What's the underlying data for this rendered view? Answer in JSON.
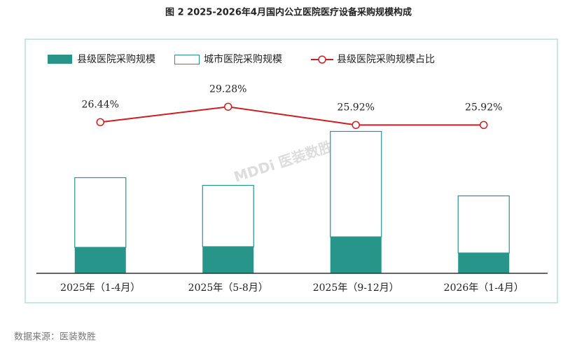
{
  "chart_data": {
    "type": "stacked_bar_line",
    "title": "图 2 2025-2026年4月国内公立医院医疗设备采购规模构成",
    "categories": [
      "2025年（1-4月）",
      "2025年（5-8月）",
      "2025年（9-12月）",
      "2026年（1-4月）"
    ],
    "series": [
      {
        "name": "县级医院采购规模",
        "color": "#27958a",
        "values": [
          37,
          38,
          52,
          29
        ]
      },
      {
        "name": "城市医院采购规模",
        "color": "#ffffff",
        "values": [
          100,
          88,
          151,
          82
        ]
      },
      {
        "name": "县级医院采购规模占比",
        "color": "#cc1f24",
        "axis": "y2",
        "values": [
          26.44,
          29.28,
          25.92,
          25.92
        ],
        "value_labels": [
          "26.44%",
          "29.28%",
          "25.92%",
          "25.92%"
        ]
      }
    ],
    "ylim": [
      0,
      330
    ],
    "y2lim": [
      -1.4,
      41.2
    ],
    "watermark": "MDDi 医装数胜",
    "source": "数据来源：医装数胜"
  }
}
